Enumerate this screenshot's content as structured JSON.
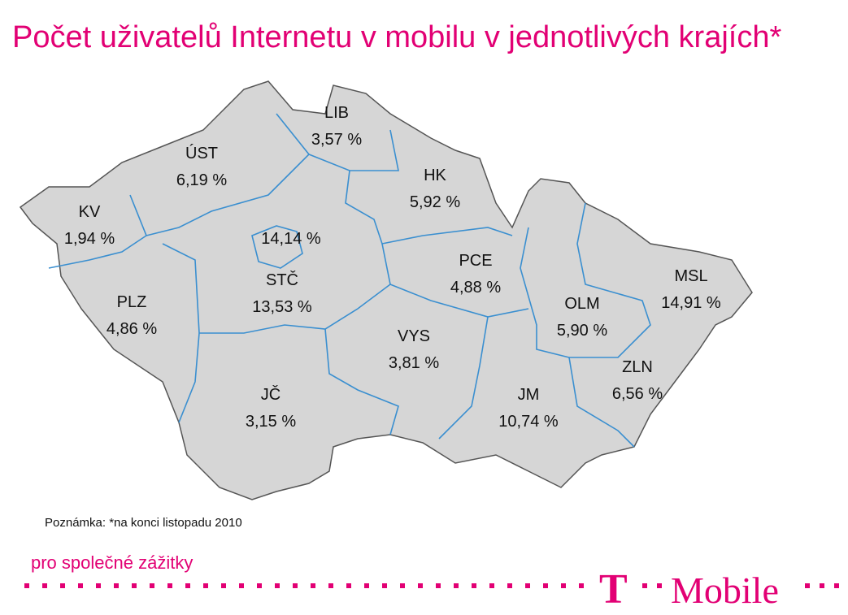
{
  "header": {
    "title": "Počet uživatelů Internetu v mobilu v jednotlivých krajích*"
  },
  "regions": [
    {
      "code": "LIB",
      "share": "3,57 %"
    },
    {
      "code": "ÚST",
      "share": "6,19 %"
    },
    {
      "code": "HK",
      "share": "5,92 %"
    },
    {
      "code": "KV",
      "share": "1,94 %"
    },
    {
      "share": "14,14 %"
    },
    {
      "code": "PCE",
      "share": "4,88 %"
    },
    {
      "code": "STČ",
      "share": "13,53 %"
    },
    {
      "code": "MSL",
      "share": "14,91 %"
    },
    {
      "code": "PLZ",
      "share": "4,86 %"
    },
    {
      "code": "OLM",
      "share": "5,90 %"
    },
    {
      "code": "VYS",
      "share": "3,81 %"
    },
    {
      "code": "ZLN",
      "share": "6,56 %"
    },
    {
      "code": "JČ",
      "share": "3,15 %"
    },
    {
      "code": "JM",
      "share": "10,74 %"
    }
  ],
  "note": "Poznámka: *na konci listopadu 2010",
  "footer": {
    "slogan": "pro společné zážitky",
    "logo_letter": "T",
    "logo_word": "Mobile"
  }
}
